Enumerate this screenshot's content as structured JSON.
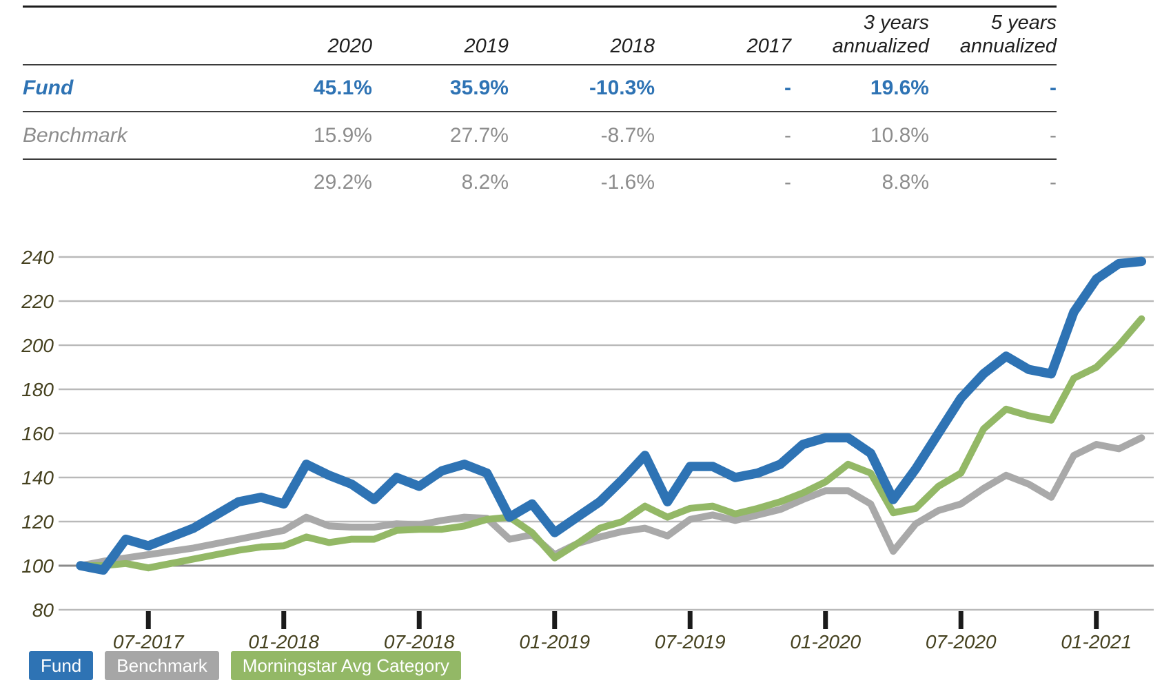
{
  "table": {
    "columns": [
      "2020",
      "2019",
      "2018",
      "2017",
      "3 years\nannualized",
      "5 years\nannualized"
    ],
    "rows": [
      {
        "label": "Fund",
        "style": "fund",
        "values": [
          "45.1%",
          "35.9%",
          "-10.3%",
          "-",
          "19.6%",
          "-"
        ]
      },
      {
        "label": "Benchmark",
        "style": "benchmark",
        "values": [
          "15.9%",
          "27.7%",
          "-8.7%",
          "-",
          "10.8%",
          "-"
        ]
      },
      {
        "label": "",
        "style": "category",
        "values": [
          "29.2%",
          "8.2%",
          "-1.6%",
          "-",
          "8.8%",
          "-"
        ]
      }
    ]
  },
  "chart_data": {
    "type": "line",
    "title": "",
    "xlabel": "",
    "ylabel": "",
    "ylim": [
      80,
      240
    ],
    "y_ticks": [
      80,
      100,
      120,
      140,
      160,
      180,
      200,
      220,
      240
    ],
    "base_value": 100,
    "grid": "horizontal",
    "legend_position": "bottom-left",
    "x": [
      "03-2017",
      "04-2017",
      "05-2017",
      "06-2017",
      "07-2017",
      "08-2017",
      "09-2017",
      "10-2017",
      "11-2017",
      "12-2017",
      "01-2018",
      "02-2018",
      "03-2018",
      "04-2018",
      "05-2018",
      "06-2018",
      "07-2018",
      "08-2018",
      "09-2018",
      "10-2018",
      "11-2018",
      "12-2018",
      "01-2019",
      "02-2019",
      "03-2019",
      "04-2019",
      "05-2019",
      "06-2019",
      "07-2019",
      "08-2019",
      "09-2019",
      "10-2019",
      "11-2019",
      "12-2019",
      "01-2020",
      "02-2020",
      "03-2020",
      "04-2020",
      "05-2020",
      "06-2020",
      "07-2020",
      "08-2020",
      "09-2020",
      "10-2020",
      "11-2020",
      "12-2020",
      "01-2021",
      "02-2021"
    ],
    "x_tick_marks": [
      {
        "label": "07-2017",
        "index": 3
      },
      {
        "label": "01-2018",
        "index": 9
      },
      {
        "label": "07-2018",
        "index": 15
      },
      {
        "label": "01-2019",
        "index": 21
      },
      {
        "label": "07-2019",
        "index": 27
      },
      {
        "label": "01-2020",
        "index": 33
      },
      {
        "label": "07-2020",
        "index": 39
      },
      {
        "label": "01-2021",
        "index": 45
      }
    ],
    "series": [
      {
        "name": "Fund",
        "color": "#2e73b4",
        "stroke_width": 13.5,
        "z": 3,
        "values": [
          100,
          98,
          112,
          109,
          113,
          117,
          123,
          129,
          131,
          128,
          146,
          141,
          137,
          130,
          140,
          136,
          143,
          146,
          142,
          122,
          128,
          115,
          122,
          129,
          139,
          150,
          129,
          145,
          145,
          140,
          142,
          146,
          155,
          158,
          158,
          151,
          130,
          144,
          160,
          176,
          187,
          195,
          189,
          187,
          215,
          230,
          237,
          238
        ]
      },
      {
        "name": "Benchmark",
        "color": "#a9a9a9",
        "stroke_width": 10,
        "z": 1,
        "values": [
          100,
          102,
          103.5,
          105,
          106.5,
          108,
          110,
          112,
          114,
          116,
          122,
          118,
          117.5,
          117.5,
          119,
          118.5,
          120.5,
          122,
          121.5,
          112,
          114,
          105,
          110,
          113,
          115.5,
          117,
          113.5,
          121,
          123,
          120.5,
          123,
          125.5,
          130,
          134,
          134,
          128,
          106.5,
          119,
          125,
          128,
          135,
          141,
          137,
          131,
          150,
          155,
          153,
          158
        ]
      },
      {
        "name": "Morningstar Avg Category",
        "color": "#93b866",
        "stroke_width": 10,
        "z": 2,
        "values": [
          100,
          100,
          101,
          99,
          101,
          103,
          105,
          107,
          108.5,
          109,
          113,
          110.5,
          112,
          112,
          116,
          116.5,
          116.5,
          118,
          121,
          122,
          115,
          103.5,
          110,
          117,
          120,
          127,
          122,
          126,
          127,
          123.5,
          126,
          129,
          133,
          138,
          146,
          142,
          124,
          126,
          136,
          142,
          162,
          171,
          168,
          166,
          185,
          190,
          200,
          212
        ]
      }
    ],
    "colors": {
      "axis_text": "#45411f",
      "grid": "#b9b9b9",
      "grid_base100": "#8a8a8a",
      "tick": "#1a1a1a"
    }
  },
  "legend": [
    {
      "label": "Fund",
      "color": "#2e73b4"
    },
    {
      "label": "Benchmark",
      "color": "#a6a6a6"
    },
    {
      "label": "Morningstar Avg Category",
      "color": "#93b866"
    }
  ]
}
